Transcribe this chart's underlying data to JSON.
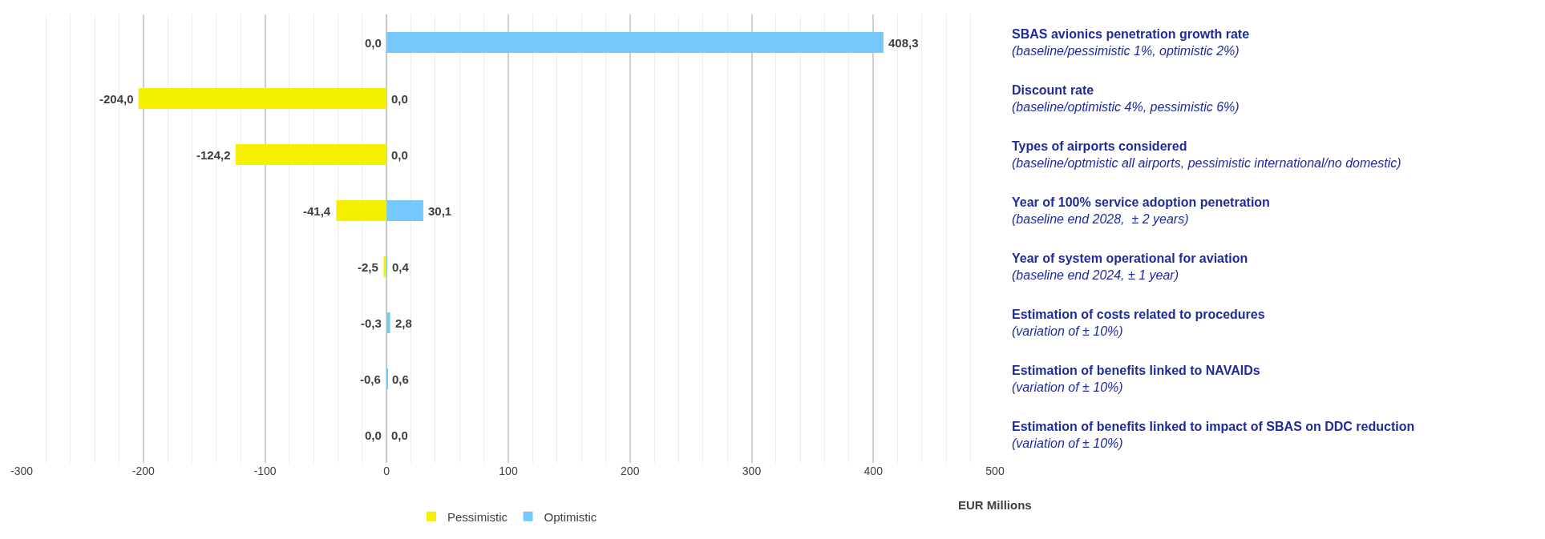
{
  "chart_data": {
    "type": "bar",
    "orientation": "horizontal",
    "xlabel": "EUR Millions",
    "categories": [
      "SBAS avionics penetration growth rate\n(baseline/pessimistic 1%, optimistic 2%)",
      "Discount rate\n(baseline/optimistic 4%, pessimistic 6%)",
      "Types of airports considered\n(baseline/optmistic all airports, pessimistic international/no domestic)",
      "Year of 100% service adoption penetration\n(baseline end 2028,  ± 2 years)",
      "Year of system operational for aviation\n(baseline end 2024, ± 1 year)",
      "Estimation of costs related to procedures\n(variation of ± 10%)",
      "Estimation of benefits linked to NAVAIDs\n(variation of ± 10%)",
      "Estimation of benefits linked to impact of SBAS on DDC reduction\n(variation of ± 10%)"
    ],
    "series": [
      {
        "name": "Pessimistic",
        "color": "#f5ef00",
        "values": [
          0.0,
          -204.0,
          -124.2,
          -41.4,
          -2.5,
          -0.3,
          -0.6,
          0.0
        ],
        "value_labels": [
          "0,0",
          "-204,0",
          "-124,2",
          "-41,4",
          "-2,5",
          "-0,3",
          "-0,6",
          "0,0"
        ]
      },
      {
        "name": "Optimistic",
        "color": "#75c8fc",
        "values": [
          408.3,
          0.0,
          0.0,
          30.1,
          0.4,
          2.8,
          0.6,
          0.0
        ],
        "value_labels": [
          "408,3",
          "0,0",
          "0,0",
          "30,1",
          "0,4",
          "2,8",
          "0,6",
          "0,0"
        ]
      }
    ],
    "xlim": [
      -300,
      500
    ],
    "xticks": [
      -300,
      {
        "value": -280,
        "label": null
      },
      {
        "value": -260,
        "label": null
      },
      {
        "value": -240,
        "label": null
      },
      {
        "value": -220,
        "label": null
      },
      -200,
      {
        "value": -180,
        "label": null
      },
      {
        "value": -160,
        "label": null
      },
      {
        "value": -140,
        "label": null
      },
      {
        "value": -120,
        "label": null
      },
      -100,
      {
        "value": -80,
        "label": null
      },
      {
        "value": -60,
        "label": null
      },
      {
        "value": -40,
        "label": null
      },
      {
        "value": -20,
        "label": null
      },
      0,
      {
        "value": 20,
        "label": null
      },
      {
        "value": 40,
        "label": null
      },
      {
        "value": 60,
        "label": null
      },
      {
        "value": 80,
        "label": null
      },
      100,
      {
        "value": 120,
        "label": null
      },
      {
        "value": 140,
        "label": null
      },
      {
        "value": 160,
        "label": null
      },
      {
        "value": 180,
        "label": null
      },
      200,
      {
        "value": 220,
        "label": null
      },
      {
        "value": 240,
        "label": null
      },
      {
        "value": 260,
        "label": null
      },
      {
        "value": 280,
        "label": null
      },
      300,
      {
        "value": 320,
        "label": null
      },
      {
        "value": 340,
        "label": null
      },
      {
        "value": 360,
        "label": null
      },
      {
        "value": 380,
        "label": null
      },
      400,
      {
        "value": 420,
        "label": null
      },
      {
        "value": 440,
        "label": null
      },
      {
        "value": 460,
        "label": null
      },
      {
        "value": 480,
        "label": null
      },
      500
    ],
    "grid": "x",
    "legend": "bottom"
  }
}
